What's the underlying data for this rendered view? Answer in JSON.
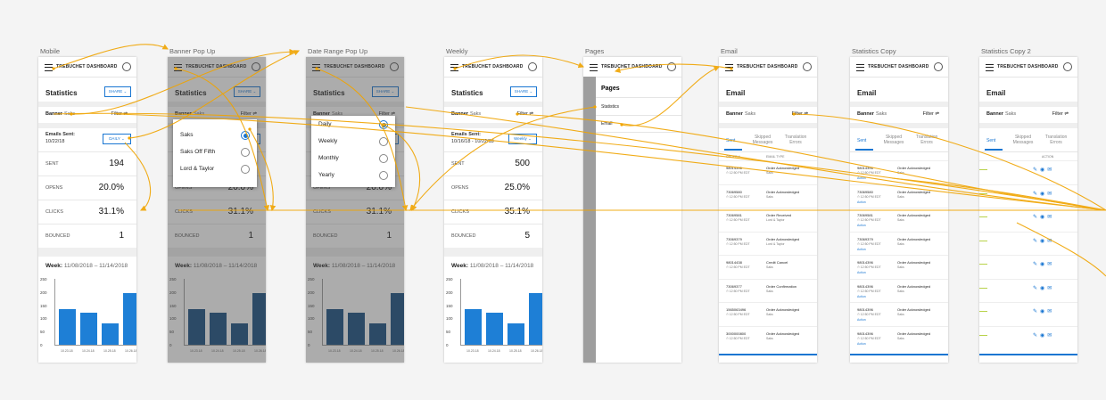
{
  "artboards": {
    "mobile": "Mobile",
    "banner": "Banner Pop Up",
    "date": "Date Range Pop Up",
    "weekly": "Weekly",
    "pages": "Pages",
    "email": "Email",
    "statcopy": "Statistics Copy",
    "statcopy2": "Statistics Copy 2"
  },
  "header_title": "TREBUCHET DASHBOARD",
  "stats": {
    "title": "Statistics",
    "share": "SHARE",
    "banner_label": "Banner",
    "banner_value": "Saks",
    "filter": "Filter",
    "emails_sent_label": "Emails Sent:",
    "emails_sent_date": "10/22/18",
    "range_date": "10/16/18 - 10/22/18",
    "daily_btn": "DAILY",
    "weekly_btn": "Weekly",
    "labels": [
      "SENT",
      "OPENS",
      "CLICKS",
      "BOUNCED"
    ],
    "values_daily": [
      "194",
      "20.0%",
      "31.1%",
      "1"
    ],
    "values_weekly": [
      "500",
      "25.0%",
      "35.1%",
      "5"
    ],
    "week_label": "Week:",
    "week_range": "11/08/2018 – 11/14/2018"
  },
  "banner_popup": [
    "Saks",
    "Saks Off Fifth",
    "Lord & Taylor"
  ],
  "date_popup": [
    "Daily",
    "Weekly",
    "Monthly",
    "Yearly"
  ],
  "pages": {
    "title": "Pages",
    "items": [
      "Statistics",
      "Email"
    ]
  },
  "email": {
    "title": "Email",
    "tabs": [
      "Sent",
      "Skipped Messages",
      "Translation Errors"
    ],
    "col_order": "ORDER #",
    "col_type": "EMAIL TYPE",
    "col_action": "ACTION",
    "time": "12:50 PM EDT",
    "action_link": "Action",
    "rows": [
      {
        "id": "98014396",
        "status": "Order Acknowledged",
        "banner": "Saks"
      },
      {
        "id": "73069580",
        "status": "Order Acknowledged",
        "banner": "Saks"
      },
      {
        "id": "73069581",
        "status": "Order Received",
        "banner": "Lord & Taylor"
      },
      {
        "id": "73069379",
        "status": "Order Acknowledged",
        "banner": "Lord & Taylor"
      },
      {
        "id": "98014438",
        "status": "Credit Cancel",
        "banner": "Saks"
      },
      {
        "id": "73069377",
        "status": "Order Confirmation",
        "banner": "Saks"
      },
      {
        "id": "1565063496",
        "status": "Order Acknowledged",
        "banner": "Saks"
      },
      {
        "id": "3000000800",
        "status": "Order Acknowledged",
        "banner": "Saks"
      }
    ],
    "copy_rows": [
      {
        "id": "98014396",
        "status": "Order Acknowledged",
        "banner": "Saks"
      },
      {
        "id": "73069580",
        "status": "Order Acknowledged",
        "banner": "Saks"
      },
      {
        "id": "73069581",
        "status": "Order Acknowledged",
        "banner": "Saks"
      },
      {
        "id": "73069379",
        "status": "Order Acknowledged",
        "banner": "Saks"
      },
      {
        "id": "98014396",
        "status": "Order Acknowledged",
        "banner": "Saks"
      },
      {
        "id": "98014396",
        "status": "Order Acknowledged",
        "banner": "Saks"
      },
      {
        "id": "98014396",
        "status": "Order Acknowledged",
        "banner": "Saks"
      },
      {
        "id": "98014396",
        "status": "Order Acknowledged",
        "banner": "Saks"
      }
    ]
  },
  "chart_data": {
    "type": "bar",
    "categories": [
      "10.23.18",
      "10.24.18",
      "10.25.18",
      "10.26.18"
    ],
    "values": [
      135,
      123,
      80,
      195
    ],
    "yticks": [
      "250",
      "200",
      "150",
      "100",
      "50",
      "0"
    ],
    "ylim": [
      0,
      250
    ]
  },
  "colors": {
    "accent": "#1976d2",
    "flow": "#f0a400",
    "bar": "#1e7fd6",
    "bar_dim": "#164e80"
  }
}
